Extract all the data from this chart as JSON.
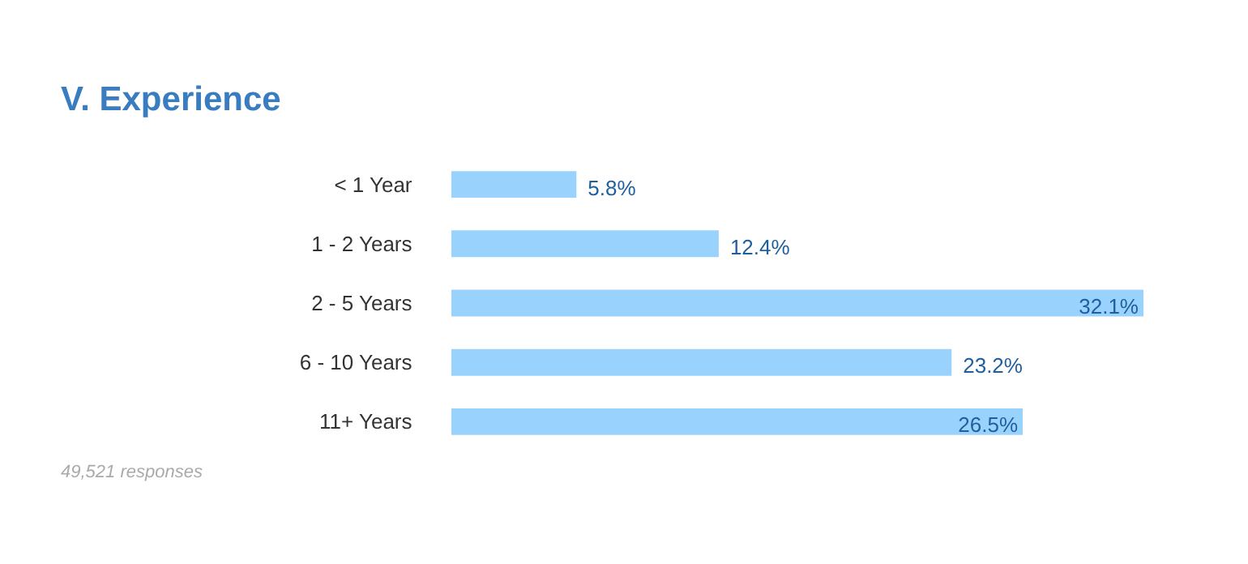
{
  "chart_data": {
    "type": "bar",
    "orientation": "horizontal",
    "title": "V. Experience",
    "data_labels": true,
    "categories": [
      "< 1 Year",
      "1 - 2 Years",
      "2 - 5 Years",
      "6 - 10 Years",
      "11+ Years"
    ],
    "values": [
      5.8,
      12.4,
      32.1,
      23.2,
      26.5
    ],
    "value_labels": [
      "5.8%",
      "12.4%",
      "32.1%",
      "23.2%",
      "26.5%"
    ],
    "color": "#99d3fd",
    "grid": false,
    "annotations": [
      "49,521 responses"
    ]
  }
}
